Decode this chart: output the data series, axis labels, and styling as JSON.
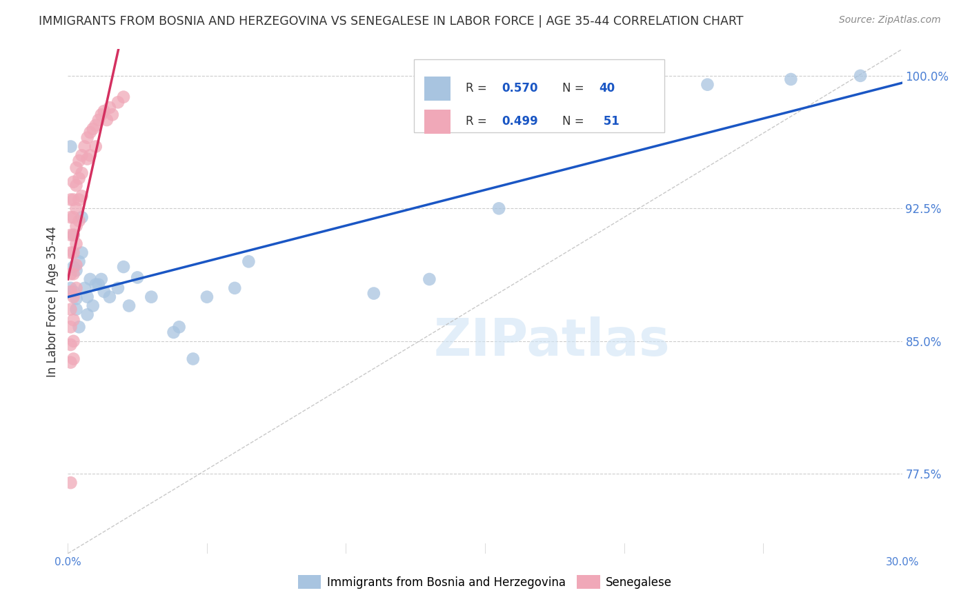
{
  "title": "IMMIGRANTS FROM BOSNIA AND HERZEGOVINA VS SENEGALESE IN LABOR FORCE | AGE 35-44 CORRELATION CHART",
  "source": "Source: ZipAtlas.com",
  "ylabel": "In Labor Force | Age 35-44",
  "xlim": [
    0.0,
    0.3
  ],
  "ylim": [
    0.73,
    1.015
  ],
  "x_ticks": [
    0.0,
    0.05,
    0.1,
    0.15,
    0.2,
    0.25,
    0.3
  ],
  "x_tick_labels": [
    "0.0%",
    "",
    "",
    "",
    "",
    "",
    "30.0%"
  ],
  "y_ticks": [
    0.775,
    0.85,
    0.925,
    1.0
  ],
  "y_tick_labels": [
    "77.5%",
    "85.0%",
    "92.5%",
    "100.0%"
  ],
  "legend_labels": [
    "Immigrants from Bosnia and Herzegovina",
    "Senegalese"
  ],
  "bosnia_color": "#a8c4e0",
  "senegal_color": "#f0a8b8",
  "bosnia_line_color": "#1a56c4",
  "senegal_line_color": "#d43060",
  "R_bosnia": 0.57,
  "N_bosnia": 40,
  "R_senegal": 0.499,
  "N_senegal": 51,
  "watermark": "ZIPatlas",
  "bg_color": "#ffffff",
  "grid_color": "#cccccc",
  "tick_color": "#4a7fd4",
  "bosnia_scatter_x": [
    0.001,
    0.001,
    0.002,
    0.002,
    0.002,
    0.003,
    0.003,
    0.003,
    0.004,
    0.004,
    0.005,
    0.005,
    0.006,
    0.007,
    0.007,
    0.008,
    0.009,
    0.01,
    0.011,
    0.012,
    0.013,
    0.015,
    0.018,
    0.02,
    0.022,
    0.025,
    0.03,
    0.038,
    0.04,
    0.045,
    0.05,
    0.06,
    0.065,
    0.11,
    0.13,
    0.155,
    0.21,
    0.23,
    0.26,
    0.285
  ],
  "bosnia_scatter_y": [
    0.96,
    0.88,
    0.91,
    0.892,
    0.878,
    0.89,
    0.874,
    0.868,
    0.895,
    0.858,
    0.9,
    0.92,
    0.88,
    0.875,
    0.865,
    0.885,
    0.87,
    0.882,
    0.882,
    0.885,
    0.878,
    0.875,
    0.88,
    0.892,
    0.87,
    0.886,
    0.875,
    0.855,
    0.858,
    0.84,
    0.875,
    0.88,
    0.895,
    0.877,
    0.885,
    0.925,
    0.988,
    0.995,
    0.998,
    1.0
  ],
  "senegal_scatter_x": [
    0.001,
    0.001,
    0.001,
    0.001,
    0.001,
    0.001,
    0.001,
    0.001,
    0.001,
    0.001,
    0.002,
    0.002,
    0.002,
    0.002,
    0.002,
    0.002,
    0.002,
    0.002,
    0.002,
    0.002,
    0.003,
    0.003,
    0.003,
    0.003,
    0.003,
    0.003,
    0.003,
    0.004,
    0.004,
    0.004,
    0.004,
    0.005,
    0.005,
    0.005,
    0.006,
    0.007,
    0.007,
    0.008,
    0.008,
    0.009,
    0.01,
    0.01,
    0.011,
    0.012,
    0.013,
    0.014,
    0.015,
    0.016,
    0.018,
    0.02,
    0.001
  ],
  "senegal_scatter_y": [
    0.93,
    0.92,
    0.91,
    0.9,
    0.888,
    0.878,
    0.868,
    0.858,
    0.848,
    0.838,
    0.94,
    0.93,
    0.92,
    0.91,
    0.9,
    0.888,
    0.875,
    0.862,
    0.85,
    0.84,
    0.948,
    0.938,
    0.925,
    0.915,
    0.905,
    0.893,
    0.88,
    0.952,
    0.942,
    0.93,
    0.918,
    0.955,
    0.945,
    0.932,
    0.96,
    0.965,
    0.953,
    0.968,
    0.955,
    0.97,
    0.972,
    0.96,
    0.975,
    0.978,
    0.98,
    0.975,
    0.982,
    0.978,
    0.985,
    0.988,
    0.77
  ]
}
